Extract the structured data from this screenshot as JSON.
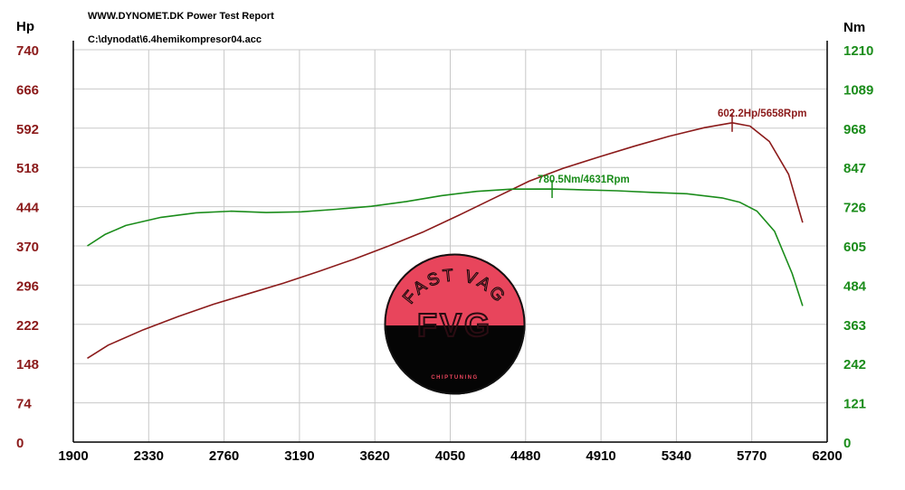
{
  "header": {
    "report_title": "WWW.DYNOMET.DK  Power Test Report",
    "file_path": "C:\\dynodat\\6.4hemikompresor04.acc"
  },
  "axes": {
    "left_unit": "Hp",
    "right_unit": "Nm",
    "left_ticks": [
      "740",
      "666",
      "592",
      "518",
      "444",
      "370",
      "296",
      "222",
      "148",
      "74",
      "0"
    ],
    "right_ticks": [
      "1210",
      "1089",
      "968",
      "847",
      "726",
      "605",
      "484",
      "363",
      "242",
      "121",
      "0"
    ],
    "x_ticks": [
      "1900",
      "2330",
      "2760",
      "3190",
      "3620",
      "4050",
      "4480",
      "4910",
      "5340",
      "5770",
      "6200"
    ]
  },
  "logo": {
    "arc_text": "FAST VAG",
    "monogram": "FVG",
    "tagline": "CHIPTUNING",
    "color_top": "#e8455c",
    "color_bottom": "#050505"
  },
  "chart_data": {
    "type": "line",
    "xlabel": "",
    "xlim": [
      1900,
      6200
    ],
    "ylim_left": [
      0,
      740
    ],
    "ylim_right": [
      0,
      1210
    ],
    "grid": true,
    "series": [
      {
        "axis": "left",
        "color": "#8b1a1a",
        "x": [
          1980,
          2100,
          2300,
          2500,
          2700,
          2900,
          3100,
          3300,
          3500,
          3700,
          3900,
          4100,
          4300,
          4500,
          4700,
          4900,
          5100,
          5300,
          5500,
          5658,
          5760,
          5870,
          5980,
          6060
        ],
        "values": [
          158,
          183,
          212,
          237,
          260,
          280,
          300,
          322,
          345,
          370,
          397,
          428,
          460,
          492,
          517,
          538,
          558,
          577,
          593,
          602.2,
          596,
          567,
          505,
          414
        ],
        "peak_label": "602.2Hp/5658Rpm",
        "peak_x": 5658,
        "peak_value": 602.2
      },
      {
        "axis": "right",
        "color": "#1a8c1a",
        "x": [
          1980,
          2080,
          2200,
          2400,
          2600,
          2800,
          3000,
          3200,
          3400,
          3600,
          3800,
          4000,
          4200,
          4400,
          4631,
          4800,
          5000,
          5200,
          5400,
          5600,
          5700,
          5800,
          5900,
          6000,
          6060
        ],
        "values": [
          605,
          640,
          668,
          693,
          707,
          712,
          708,
          710,
          718,
          727,
          742,
          760,
          773,
          780,
          780.5,
          778,
          775,
          770,
          766,
          753,
          740,
          712,
          650,
          520,
          420
        ],
        "peak_label": "780.5Nm/4631Rpm",
        "peak_x": 4631,
        "peak_value": 780.5
      }
    ]
  }
}
